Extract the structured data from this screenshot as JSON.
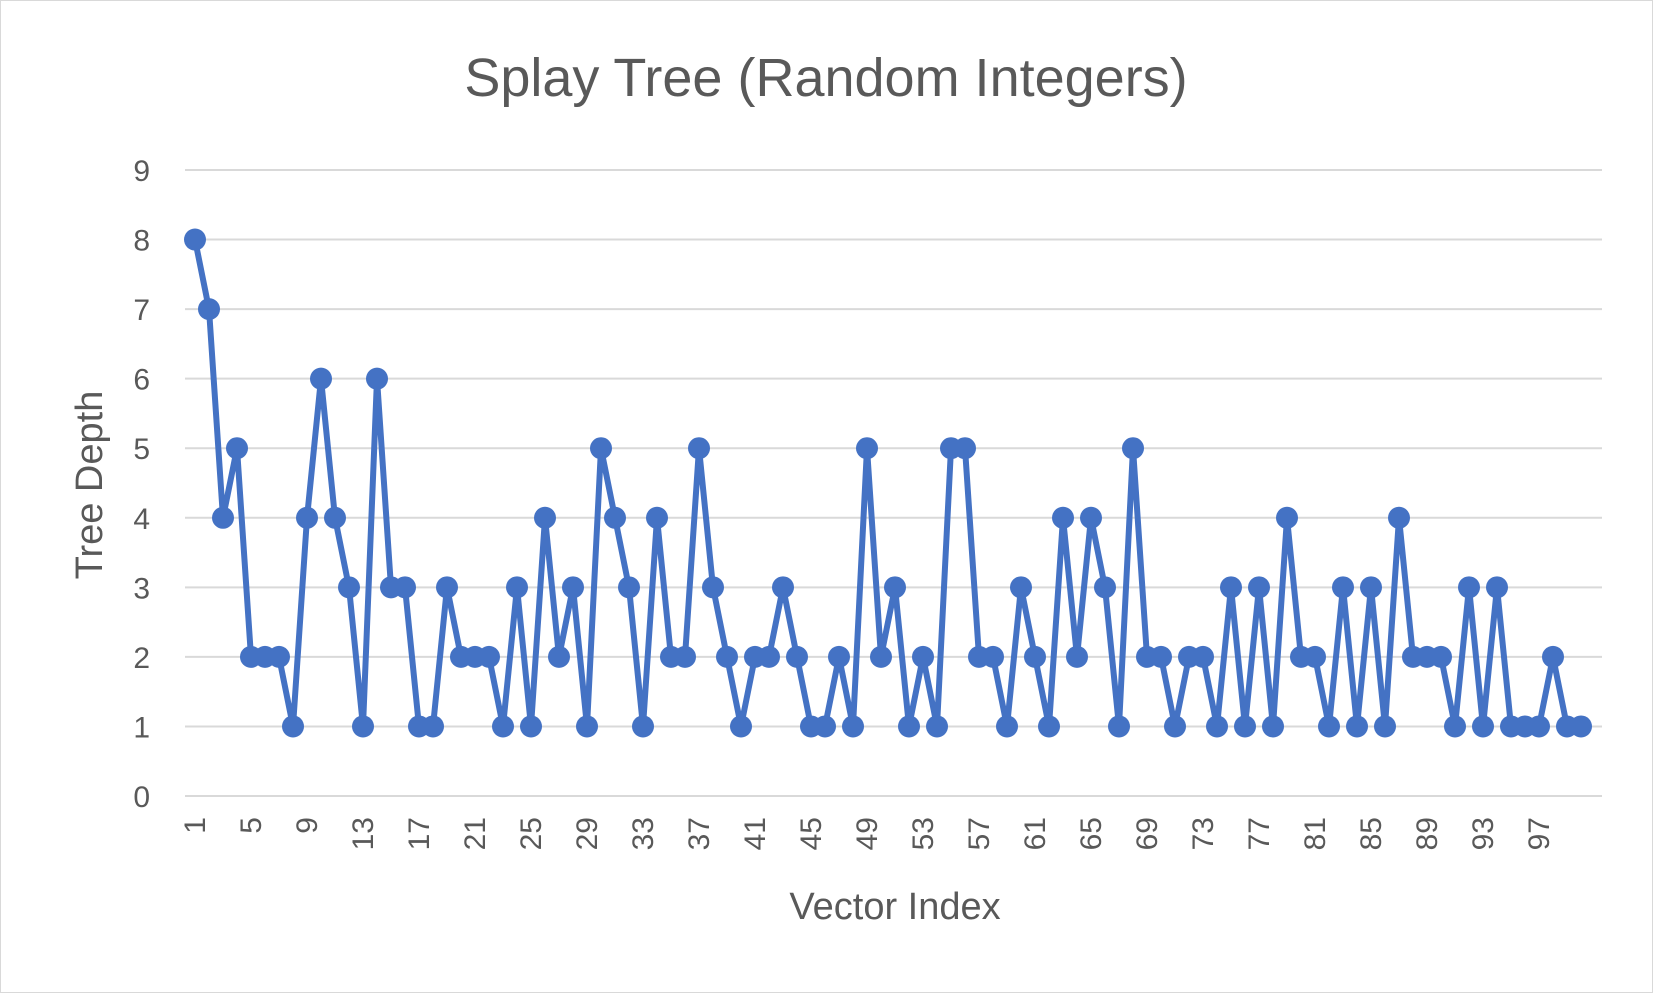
{
  "chart_data": {
    "type": "line",
    "title": "Splay Tree (Random Integers)",
    "xlabel": "Vector Index",
    "ylabel": "Tree Depth",
    "ylim": [
      0,
      9
    ],
    "y_ticks": [
      0,
      1,
      2,
      3,
      4,
      5,
      6,
      7,
      8,
      9
    ],
    "x_tick_labels": [
      "1",
      "5",
      "9",
      "13",
      "17",
      "21",
      "25",
      "29",
      "33",
      "37",
      "41",
      "45",
      "49",
      "53",
      "57",
      "61",
      "65",
      "69",
      "73",
      "77",
      "81",
      "85",
      "89",
      "93",
      "97"
    ],
    "grid": true,
    "legend": "none",
    "color": "#4472c4",
    "x": [
      1,
      2,
      3,
      4,
      5,
      6,
      7,
      8,
      9,
      10,
      11,
      12,
      13,
      14,
      15,
      16,
      17,
      18,
      19,
      20,
      21,
      22,
      23,
      24,
      25,
      26,
      27,
      28,
      29,
      30,
      31,
      32,
      33,
      34,
      35,
      36,
      37,
      38,
      39,
      40,
      41,
      42,
      43,
      44,
      45,
      46,
      47,
      48,
      49,
      50,
      51,
      52,
      53,
      54,
      55,
      56,
      57,
      58,
      59,
      60,
      61,
      62,
      63,
      64,
      65,
      66,
      67,
      68,
      69,
      70,
      71,
      72,
      73,
      74,
      75,
      76,
      77,
      78,
      79,
      80,
      81,
      82,
      83,
      84,
      85,
      86,
      87,
      88,
      89,
      90,
      91,
      92,
      93,
      94,
      95,
      96,
      97,
      98,
      99,
      100
    ],
    "values": [
      8,
      7,
      4,
      5,
      2,
      2,
      2,
      1,
      4,
      6,
      4,
      3,
      1,
      6,
      3,
      3,
      1,
      1,
      3,
      2,
      2,
      2,
      1,
      3,
      1,
      4,
      2,
      3,
      1,
      5,
      4,
      3,
      1,
      4,
      2,
      2,
      5,
      3,
      2,
      1,
      2,
      2,
      3,
      2,
      1,
      1,
      2,
      1,
      5,
      2,
      3,
      1,
      2,
      1,
      5,
      5,
      2,
      2,
      1,
      3,
      2,
      1,
      4,
      2,
      4,
      3,
      1,
      5,
      2,
      2,
      1,
      2,
      2,
      1,
      3,
      1,
      3,
      1,
      4,
      2,
      2,
      1,
      3,
      1,
      3,
      1,
      4,
      2,
      2,
      2,
      1,
      3,
      1,
      3,
      1,
      1,
      1,
      2,
      1,
      1
    ]
  }
}
